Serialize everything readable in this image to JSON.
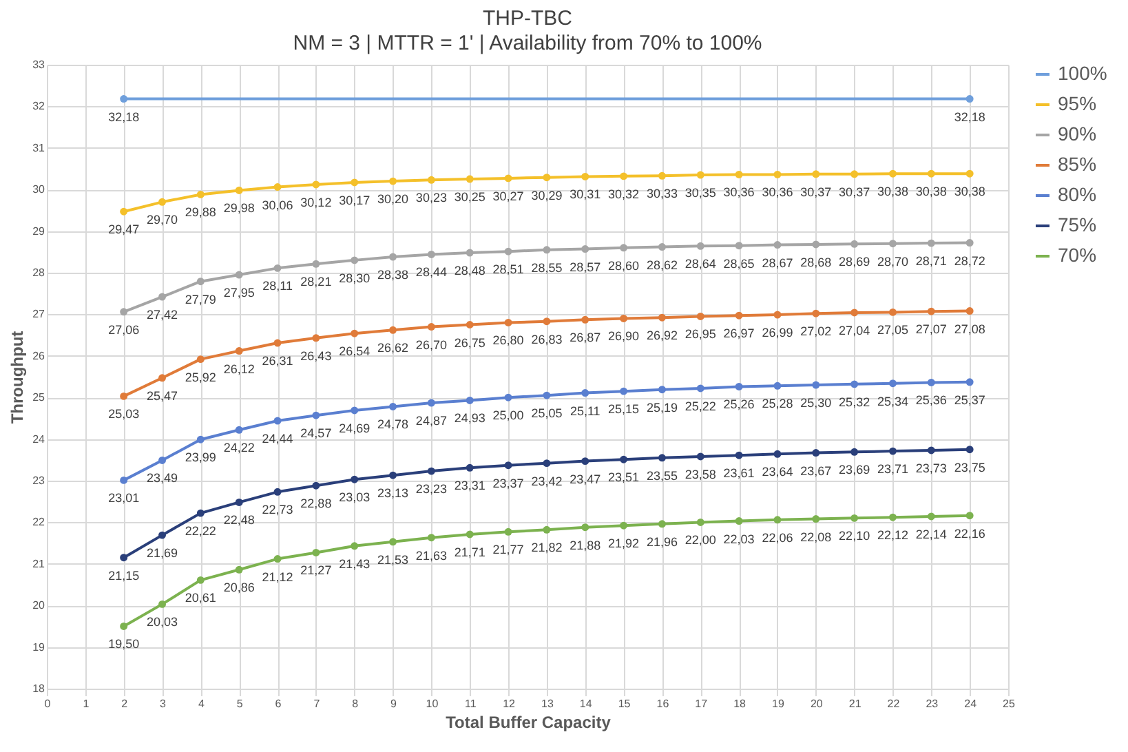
{
  "chart_data": {
    "type": "line",
    "title": "THP-TBC",
    "subtitle": "NM = 3 | MTTR = 1' | Availability from 70% to 100%",
    "xlabel": "Total Buffer Capacity",
    "ylabel": "Throughput",
    "x": [
      2,
      3,
      4,
      5,
      6,
      7,
      8,
      9,
      10,
      11,
      12,
      13,
      14,
      15,
      16,
      17,
      18,
      19,
      20,
      21,
      22,
      23,
      24
    ],
    "xlim": [
      0,
      25
    ],
    "xticks": [
      0,
      1,
      2,
      3,
      4,
      5,
      6,
      7,
      8,
      9,
      10,
      11,
      12,
      13,
      14,
      15,
      16,
      17,
      18,
      19,
      20,
      21,
      22,
      23,
      24,
      25
    ],
    "ylim": [
      18,
      33
    ],
    "yticks": [
      18,
      19,
      20,
      21,
      22,
      23,
      24,
      25,
      26,
      27,
      28,
      29,
      30,
      31,
      32,
      33
    ],
    "grid": true,
    "legend": "right",
    "marker": "circle",
    "line_style": "solid",
    "series": [
      {
        "name": "100%",
        "color": "#6f9fdc",
        "x": [
          2,
          24
        ],
        "values": [
          32.18,
          32.18
        ],
        "value_labels": [
          "32,18",
          "32,18"
        ]
      },
      {
        "name": "95%",
        "color": "#f4c02a",
        "values": [
          29.47,
          29.7,
          29.88,
          29.98,
          30.06,
          30.12,
          30.17,
          30.2,
          30.23,
          30.25,
          30.27,
          30.29,
          30.31,
          30.32,
          30.33,
          30.35,
          30.36,
          30.36,
          30.37,
          30.37,
          30.38,
          30.38,
          30.38
        ],
        "value_labels": [
          "29,47",
          "29,70",
          "29,88",
          "29,98",
          "30,06",
          "30,12",
          "30,17",
          "30,20",
          "30,23",
          "30,25",
          "30,27",
          "30,29",
          "30,31",
          "30,32",
          "30,33",
          "30,35",
          "30,36",
          "30,36",
          "30,37",
          "30,37",
          "30,38",
          "30,38",
          "30,38"
        ]
      },
      {
        "name": "90%",
        "color": "#a5a5a5",
        "values": [
          27.06,
          27.42,
          27.79,
          27.95,
          28.11,
          28.21,
          28.3,
          28.38,
          28.44,
          28.48,
          28.51,
          28.55,
          28.57,
          28.6,
          28.62,
          28.64,
          28.65,
          28.67,
          28.68,
          28.69,
          28.7,
          28.71,
          28.72
        ],
        "value_labels": [
          "27,06",
          "27,42",
          "27,79",
          "27,95",
          "28,11",
          "28,21",
          "28,30",
          "28,38",
          "28,44",
          "28,48",
          "28,51",
          "28,55",
          "28,57",
          "28,60",
          "28,62",
          "28,64",
          "28,65",
          "28,67",
          "28,68",
          "28,69",
          "28,70",
          "28,71",
          "28,72"
        ]
      },
      {
        "name": "85%",
        "color": "#e07b39",
        "values": [
          25.03,
          25.47,
          25.92,
          26.12,
          26.31,
          26.43,
          26.54,
          26.62,
          26.7,
          26.75,
          26.8,
          26.83,
          26.87,
          26.9,
          26.92,
          26.95,
          26.97,
          26.99,
          27.02,
          27.04,
          27.05,
          27.07,
          27.08
        ],
        "value_labels": [
          "25,03",
          "25,47",
          "25,92",
          "26,12",
          "26,31",
          "26,43",
          "26,54",
          "26,62",
          "26,70",
          "26,75",
          "26,80",
          "26,83",
          "26,87",
          "26,90",
          "26,92",
          "26,95",
          "26,97",
          "26,99",
          "27,02",
          "27,04",
          "27,05",
          "27,07",
          "27,08"
        ]
      },
      {
        "name": "80%",
        "color": "#5a7fd0",
        "values": [
          23.01,
          23.49,
          23.99,
          24.22,
          24.44,
          24.57,
          24.69,
          24.78,
          24.87,
          24.93,
          25.0,
          25.05,
          25.11,
          25.15,
          25.19,
          25.22,
          25.26,
          25.28,
          25.3,
          25.32,
          25.34,
          25.36,
          25.37
        ],
        "value_labels": [
          "23,01",
          "23,49",
          "23,99",
          "24,22",
          "24,44",
          "24,57",
          "24,69",
          "24,78",
          "24,87",
          "24,93",
          "25,00",
          "25,05",
          "25,11",
          "25,15",
          "25,19",
          "25,22",
          "25,26",
          "25,28",
          "25,30",
          "25,32",
          "25,34",
          "25,36",
          "25,37"
        ]
      },
      {
        "name": "75%",
        "color": "#2a3f7a",
        "values": [
          21.15,
          21.69,
          22.22,
          22.48,
          22.73,
          22.88,
          23.03,
          23.13,
          23.23,
          23.31,
          23.37,
          23.42,
          23.47,
          23.51,
          23.55,
          23.58,
          23.61,
          23.64,
          23.67,
          23.69,
          23.71,
          23.73,
          23.75
        ],
        "value_labels": [
          "21,15",
          "21,69",
          "22,22",
          "22,48",
          "22,73",
          "22,88",
          "23,03",
          "23,13",
          "23,23",
          "23,31",
          "23,37",
          "23,42",
          "23,47",
          "23,51",
          "23,55",
          "23,58",
          "23,61",
          "23,64",
          "23,67",
          "23,69",
          "23,71",
          "23,73",
          "23,75"
        ]
      },
      {
        "name": "70%",
        "color": "#7cb24f",
        "values": [
          19.5,
          20.03,
          20.61,
          20.86,
          21.12,
          21.27,
          21.43,
          21.53,
          21.63,
          21.71,
          21.77,
          21.82,
          21.88,
          21.92,
          21.96,
          22.0,
          22.03,
          22.06,
          22.08,
          22.1,
          22.12,
          22.14,
          22.16
        ],
        "value_labels": [
          "19,50",
          "20,03",
          "20,61",
          "20,86",
          "21,12",
          "21,27",
          "21,43",
          "21,53",
          "21,63",
          "21,71",
          "21,77",
          "21,82",
          "21,88",
          "21,92",
          "21,96",
          "22,00",
          "22,03",
          "22,06",
          "22,08",
          "22,10",
          "22,12",
          "22,14",
          "22,16"
        ]
      }
    ]
  }
}
